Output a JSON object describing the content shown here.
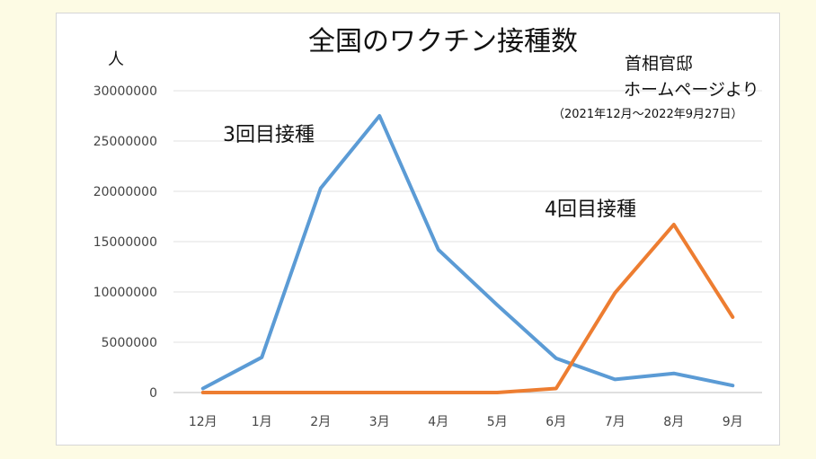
{
  "chart_data": {
    "type": "line",
    "title": "全国のワクチン接種数",
    "ylabel": "人",
    "xlabel": "",
    "categories": [
      "12月",
      "1月",
      "2月",
      "3月",
      "4月",
      "5月",
      "6月",
      "7月",
      "8月",
      "9月"
    ],
    "ylim": [
      0,
      30000000
    ],
    "yticks": [
      0,
      5000000,
      10000000,
      15000000,
      20000000,
      25000000,
      30000000
    ],
    "grid": true,
    "series": [
      {
        "name": "3回目接種",
        "color": "#5b9bd5",
        "values": [
          400000,
          3500000,
          20300000,
          27500000,
          14200000,
          8700000,
          3400000,
          1300000,
          1900000,
          700000
        ]
      },
      {
        "name": "4回目接種",
        "color": "#ed7d31",
        "values": [
          0,
          0,
          0,
          0,
          0,
          0,
          400000,
          9900000,
          16700000,
          7500000
        ]
      }
    ],
    "source": {
      "line1": "首相官邸",
      "line2": "ホームページより",
      "line3": "（2021年12月～2022年9月27日）"
    }
  }
}
